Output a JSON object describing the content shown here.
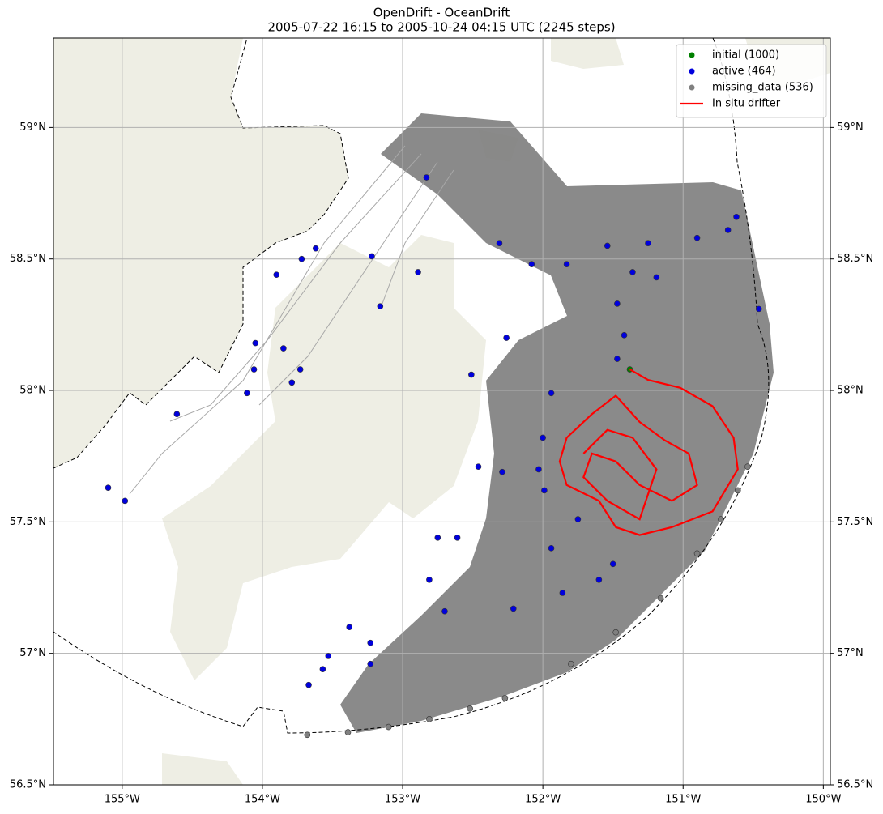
{
  "chart_data": {
    "type": "map",
    "title": "OpenDrift - OceanDrift",
    "subtitle": "2005-07-22 16:15 to 2005-10-24 04:15 UTC (2245 steps)",
    "xlim": [
      -155.49,
      -149.95
    ],
    "ylim": [
      56.5,
      59.34
    ],
    "grid": true,
    "legend": "upper right",
    "xticks": [
      {
        "value": -155,
        "label": "155°W"
      },
      {
        "value": -154,
        "label": "154°W"
      },
      {
        "value": -153,
        "label": "153°W"
      },
      {
        "value": -152,
        "label": "152°W"
      },
      {
        "value": -151,
        "label": "151°W"
      },
      {
        "value": -150,
        "label": "150°W"
      }
    ],
    "yticks": [
      {
        "value": 56.5,
        "label": "56.5°N"
      },
      {
        "value": 57,
        "label": "57°N"
      },
      {
        "value": 57.5,
        "label": "57.5°N"
      },
      {
        "value": 58,
        "label": "58°N"
      },
      {
        "value": 58.5,
        "label": "58.5°N"
      },
      {
        "value": 59,
        "label": "59°N"
      }
    ],
    "series": [
      {
        "name": "initial (1000)",
        "color": "#008000",
        "kind": "points",
        "x": [
          -151.38
        ],
        "y": [
          58.08
        ]
      },
      {
        "name": "active (464)",
        "color": "#0000dd",
        "kind": "points",
        "x": [
          -152.83,
          -153.62,
          -153.72,
          -153.9,
          -154.05,
          -154.06,
          -154.11,
          -154.61,
          -155.1,
          -154.98,
          -153.73,
          -153.79,
          -153.85,
          -153.22,
          -153.16,
          -152.89,
          -152.31,
          -152.08,
          -151.83,
          -151.54,
          -151.25,
          -150.9,
          -150.68,
          -150.62,
          -151.36,
          -151.19,
          -151.47,
          -151.42,
          -151.47,
          -152.26,
          -152.51,
          -151.94,
          -152.0,
          -152.03,
          -151.99,
          -151.75,
          -151.94,
          -151.5,
          -151.6,
          -151.86,
          -152.21,
          -152.7,
          -152.81,
          -152.75,
          -152.61,
          -153.38,
          -153.53,
          -153.57,
          -153.67,
          -153.23,
          -153.23,
          -150.46,
          -152.29,
          -152.46
        ],
        "y": [
          58.81,
          58.54,
          58.5,
          58.44,
          58.18,
          58.08,
          57.99,
          57.91,
          57.63,
          57.58,
          58.08,
          58.03,
          58.16,
          58.51,
          58.32,
          58.45,
          58.56,
          58.48,
          58.48,
          58.55,
          58.56,
          58.58,
          58.61,
          58.66,
          58.45,
          58.43,
          58.33,
          58.21,
          58.12,
          58.2,
          58.06,
          57.99,
          57.82,
          57.7,
          57.62,
          57.51,
          57.4,
          57.34,
          57.28,
          57.23,
          57.17,
          57.16,
          57.28,
          57.44,
          57.44,
          57.1,
          56.99,
          56.94,
          56.88,
          56.96,
          57.04,
          58.31,
          57.69,
          57.71
        ]
      },
      {
        "name": "missing_data (536)",
        "color": "#808080",
        "kind": "points",
        "x": [
          -153.68,
          -153.39,
          -153.1,
          -152.81,
          -152.52,
          -152.27,
          -151.8,
          -151.48,
          -151.16,
          -150.9,
          -150.73,
          -150.61,
          -150.54
        ],
        "y": [
          56.69,
          56.7,
          56.72,
          56.75,
          56.79,
          56.83,
          56.96,
          57.08,
          57.21,
          57.38,
          57.51,
          57.62,
          57.71
        ]
      },
      {
        "name": "In situ drifter",
        "color": "#ff0000",
        "kind": "line",
        "x": [
          -151.38,
          -151.25,
          -151.02,
          -150.79,
          -150.64,
          -150.61,
          -150.79,
          -151.08,
          -151.31,
          -151.48,
          -151.6,
          -151.83,
          -151.88,
          -151.83,
          -151.65,
          -151.48,
          -151.31,
          -151.13,
          -150.96,
          -150.9,
          -151.08,
          -151.31,
          -151.48,
          -151.65,
          -151.71,
          -151.54,
          -151.31,
          -151.19,
          -151.36,
          -151.54,
          -151.71
        ],
        "y": [
          58.08,
          58.04,
          58.01,
          57.94,
          57.82,
          57.7,
          57.54,
          57.48,
          57.45,
          57.48,
          57.58,
          57.64,
          57.73,
          57.82,
          57.91,
          57.98,
          57.88,
          57.81,
          57.76,
          57.64,
          57.58,
          57.64,
          57.73,
          57.76,
          57.67,
          57.58,
          57.51,
          57.7,
          57.82,
          57.85,
          57.76
        ]
      }
    ]
  }
}
